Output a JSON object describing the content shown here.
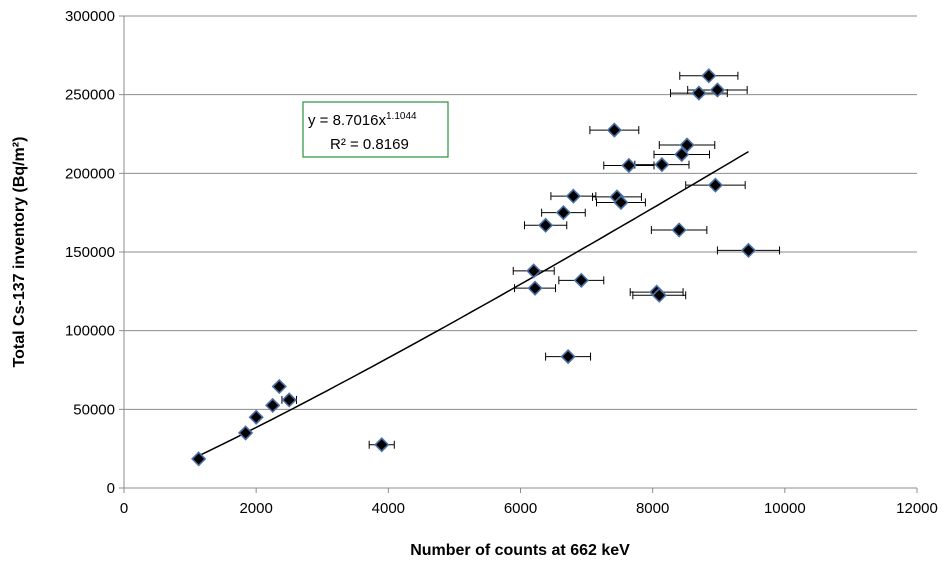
{
  "chart_data": {
    "type": "scatter",
    "xlabel": "Number of counts at 662 keV",
    "ylabel": "Total Cs-137 inventory (Bq/m²)",
    "xlim": [
      0,
      12000
    ],
    "ylim": [
      0,
      300000
    ],
    "x_ticks": [
      "0",
      "2000",
      "4000",
      "6000",
      "8000",
      "10000",
      "12000"
    ],
    "y_ticks": [
      "0",
      "50000",
      "100000",
      "150000",
      "200000",
      "250000",
      "300000"
    ],
    "grid": "horizontal",
    "marker": "diamond",
    "marker_color": "#000000",
    "marker_edge_color": "#4a6fa5",
    "trendline_color": "#000000",
    "equation_box_border_color": "#3a9a4a",
    "equation": {
      "prefix": "y = 8.7016x",
      "exponent": "1.1044",
      "r2": "R² = 0.8169"
    },
    "trendline": {
      "type": "power",
      "a": 8.7016,
      "b": 1.1044,
      "x_range": [
        1130,
        9450
      ]
    },
    "points": [
      {
        "x": 1130,
        "y": 18500,
        "xerr": 0
      },
      {
        "x": 1840,
        "y": 35000,
        "xerr": 0
      },
      {
        "x": 2000,
        "y": 45000,
        "xerr": 0
      },
      {
        "x": 2250,
        "y": 52500,
        "xerr": 0
      },
      {
        "x": 2350,
        "y": 64500,
        "xerr": 0
      },
      {
        "x": 2500,
        "y": 56000,
        "xerr": 110
      },
      {
        "x": 3900,
        "y": 27500,
        "xerr": 190
      },
      {
        "x": 6200,
        "y": 138000,
        "xerr": 310
      },
      {
        "x": 6220,
        "y": 127000,
        "xerr": 310
      },
      {
        "x": 6380,
        "y": 167000,
        "xerr": 320
      },
      {
        "x": 6650,
        "y": 175000,
        "xerr": 330
      },
      {
        "x": 6720,
        "y": 83500,
        "xerr": 340
      },
      {
        "x": 6800,
        "y": 185500,
        "xerr": 340
      },
      {
        "x": 6920,
        "y": 132000,
        "xerr": 340
      },
      {
        "x": 7420,
        "y": 227500,
        "xerr": 370
      },
      {
        "x": 7460,
        "y": 185000,
        "xerr": 370
      },
      {
        "x": 7520,
        "y": 181500,
        "xerr": 370
      },
      {
        "x": 7640,
        "y": 205000,
        "xerr": 380
      },
      {
        "x": 8060,
        "y": 124500,
        "xerr": 400
      },
      {
        "x": 8100,
        "y": 122500,
        "xerr": 400
      },
      {
        "x": 8140,
        "y": 205500,
        "xerr": 410
      },
      {
        "x": 8400,
        "y": 164000,
        "xerr": 420
      },
      {
        "x": 8440,
        "y": 212000,
        "xerr": 420
      },
      {
        "x": 8520,
        "y": 218000,
        "xerr": 420
      },
      {
        "x": 8700,
        "y": 251000,
        "xerr": 430
      },
      {
        "x": 8850,
        "y": 262000,
        "xerr": 440
      },
      {
        "x": 8950,
        "y": 192500,
        "xerr": 450
      },
      {
        "x": 8980,
        "y": 253000,
        "xerr": 450
      },
      {
        "x": 9450,
        "y": 151000,
        "xerr": 470
      }
    ]
  }
}
